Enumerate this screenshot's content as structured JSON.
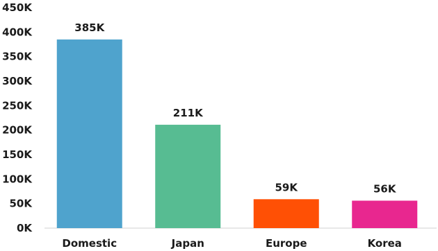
{
  "chart_data": {
    "type": "bar",
    "categories": [
      "Domestic",
      "Japan",
      "Europe",
      "Korea"
    ],
    "values": [
      385000,
      211000,
      59000,
      56000
    ],
    "data_labels": [
      "385K",
      "211K",
      "59K",
      "56K"
    ],
    "colors": [
      "#4FA3CD",
      "#57BC92",
      "#FF5005",
      "#E8278F"
    ],
    "ylim": [
      0,
      450000
    ],
    "yticks": [
      0,
      50000,
      100000,
      150000,
      200000,
      250000,
      300000,
      350000,
      400000,
      450000
    ],
    "ytick_labels": [
      "0K",
      "50K",
      "100K",
      "150K",
      "200K",
      "250K",
      "300K",
      "350K",
      "400K",
      "450K"
    ],
    "grid": false,
    "legend": "none"
  }
}
